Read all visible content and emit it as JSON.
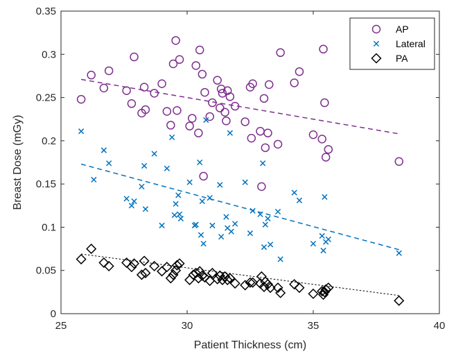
{
  "chart_data": {
    "type": "scatter",
    "title": "",
    "xlabel": "Patient Thickness (cm)",
    "ylabel": "Breast Dose (mGy)",
    "xlim": [
      25,
      40
    ],
    "ylim": [
      0,
      0.35
    ],
    "xticks": [
      25,
      30,
      35,
      40
    ],
    "yticks": [
      0,
      0.05,
      0.1,
      0.15,
      0.2,
      0.25,
      0.3,
      0.35
    ],
    "grid": false,
    "legend_position": "top-right",
    "series": [
      {
        "name": "AP",
        "marker": "circle",
        "color": "#7E2F8E",
        "points": [
          [
            25.8,
            0.248
          ],
          [
            26.2,
            0.276
          ],
          [
            26.7,
            0.261
          ],
          [
            26.9,
            0.281
          ],
          [
            27.6,
            0.258
          ],
          [
            27.8,
            0.243
          ],
          [
            27.9,
            0.297
          ],
          [
            28.2,
            0.232
          ],
          [
            28.3,
            0.262
          ],
          [
            28.35,
            0.236
          ],
          [
            28.7,
            0.255
          ],
          [
            29.0,
            0.266
          ],
          [
            29.2,
            0.234
          ],
          [
            29.35,
            0.218
          ],
          [
            29.45,
            0.289
          ],
          [
            29.55,
            0.316
          ],
          [
            29.6,
            0.235
          ],
          [
            29.7,
            0.294
          ],
          [
            30.1,
            0.217
          ],
          [
            30.2,
            0.226
          ],
          [
            30.35,
            0.287
          ],
          [
            30.45,
            0.209
          ],
          [
            30.5,
            0.305
          ],
          [
            30.6,
            0.277
          ],
          [
            30.65,
            0.159
          ],
          [
            30.7,
            0.256
          ],
          [
            30.9,
            0.228
          ],
          [
            31.0,
            0.244
          ],
          [
            31.2,
            0.27
          ],
          [
            31.3,
            0.238
          ],
          [
            31.35,
            0.26
          ],
          [
            31.4,
            0.255
          ],
          [
            31.5,
            0.233
          ],
          [
            31.55,
            0.223
          ],
          [
            31.6,
            0.258
          ],
          [
            31.7,
            0.251
          ],
          [
            31.9,
            0.24
          ],
          [
            32.3,
            0.222
          ],
          [
            32.5,
            0.262
          ],
          [
            32.55,
            0.203
          ],
          [
            32.6,
            0.266
          ],
          [
            32.9,
            0.211
          ],
          [
            32.95,
            0.147
          ],
          [
            33.05,
            0.249
          ],
          [
            33.1,
            0.192
          ],
          [
            33.2,
            0.209
          ],
          [
            33.25,
            0.265
          ],
          [
            33.6,
            0.196
          ],
          [
            33.7,
            0.302
          ],
          [
            34.25,
            0.267
          ],
          [
            34.45,
            0.28
          ],
          [
            35.0,
            0.207
          ],
          [
            35.35,
            0.202
          ],
          [
            35.4,
            0.306
          ],
          [
            35.45,
            0.244
          ],
          [
            35.5,
            0.181
          ],
          [
            35.6,
            0.19
          ],
          [
            38.4,
            0.176
          ]
        ],
        "trend": [
          [
            25.8,
            0.271
          ],
          [
            38.4,
            0.208
          ]
        ]
      },
      {
        "name": "Lateral",
        "marker": "x",
        "color": "#0072BD",
        "points": [
          [
            25.8,
            0.211
          ],
          [
            26.3,
            0.155
          ],
          [
            26.7,
            0.189
          ],
          [
            26.9,
            0.174
          ],
          [
            27.6,
            0.133
          ],
          [
            27.8,
            0.125
          ],
          [
            27.9,
            0.13
          ],
          [
            28.2,
            0.147
          ],
          [
            28.3,
            0.171
          ],
          [
            28.35,
            0.121
          ],
          [
            28.7,
            0.185
          ],
          [
            29.0,
            0.102
          ],
          [
            29.2,
            0.168
          ],
          [
            29.4,
            0.204
          ],
          [
            29.5,
            0.114
          ],
          [
            29.55,
            0.127
          ],
          [
            29.65,
            0.137
          ],
          [
            29.7,
            0.115
          ],
          [
            29.75,
            0.11
          ],
          [
            30.1,
            0.152
          ],
          [
            30.3,
            0.102
          ],
          [
            30.35,
            0.103
          ],
          [
            30.5,
            0.175
          ],
          [
            30.55,
            0.091
          ],
          [
            30.6,
            0.13
          ],
          [
            30.65,
            0.081
          ],
          [
            30.75,
            0.224
          ],
          [
            30.9,
            0.134
          ],
          [
            31.0,
            0.102
          ],
          [
            31.3,
            0.149
          ],
          [
            31.35,
            0.089
          ],
          [
            31.55,
            0.112
          ],
          [
            31.6,
            0.099
          ],
          [
            31.7,
            0.209
          ],
          [
            31.75,
            0.095
          ],
          [
            31.9,
            0.104
          ],
          [
            32.3,
            0.152
          ],
          [
            32.5,
            0.093
          ],
          [
            32.6,
            0.119
          ],
          [
            32.9,
            0.115
          ],
          [
            33.0,
            0.174
          ],
          [
            33.05,
            0.077
          ],
          [
            33.1,
            0.103
          ],
          [
            33.2,
            0.11
          ],
          [
            33.3,
            0.08
          ],
          [
            33.6,
            0.118
          ],
          [
            33.7,
            0.063
          ],
          [
            34.25,
            0.14
          ],
          [
            34.45,
            0.131
          ],
          [
            35.0,
            0.081
          ],
          [
            35.35,
            0.09
          ],
          [
            35.4,
            0.073
          ],
          [
            35.45,
            0.135
          ],
          [
            35.5,
            0.083
          ],
          [
            35.6,
            0.086
          ],
          [
            38.4,
            0.07
          ]
        ],
        "trend": [
          [
            25.8,
            0.173
          ],
          [
            38.4,
            0.074
          ]
        ]
      },
      {
        "name": "PA",
        "marker": "diamond",
        "color": "#000000",
        "points": [
          [
            25.8,
            0.063
          ],
          [
            26.2,
            0.075
          ],
          [
            26.7,
            0.059
          ],
          [
            26.9,
            0.055
          ],
          [
            27.6,
            0.059
          ],
          [
            27.8,
            0.054
          ],
          [
            27.9,
            0.058
          ],
          [
            28.2,
            0.045
          ],
          [
            28.3,
            0.061
          ],
          [
            28.35,
            0.047
          ],
          [
            28.7,
            0.055
          ],
          [
            29.0,
            0.049
          ],
          [
            29.2,
            0.054
          ],
          [
            29.35,
            0.041
          ],
          [
            29.45,
            0.045
          ],
          [
            29.55,
            0.05
          ],
          [
            29.6,
            0.056
          ],
          [
            29.7,
            0.058
          ],
          [
            30.1,
            0.039
          ],
          [
            30.25,
            0.045
          ],
          [
            30.35,
            0.047
          ],
          [
            30.45,
            0.041
          ],
          [
            30.5,
            0.049
          ],
          [
            30.6,
            0.044
          ],
          [
            30.7,
            0.042
          ],
          [
            30.9,
            0.038
          ],
          [
            31.0,
            0.047
          ],
          [
            31.2,
            0.04
          ],
          [
            31.3,
            0.044
          ],
          [
            31.4,
            0.039
          ],
          [
            31.5,
            0.043
          ],
          [
            31.6,
            0.039
          ],
          [
            31.7,
            0.041
          ],
          [
            31.9,
            0.035
          ],
          [
            32.3,
            0.033
          ],
          [
            32.5,
            0.036
          ],
          [
            32.6,
            0.036
          ],
          [
            32.9,
            0.035
          ],
          [
            32.95,
            0.043
          ],
          [
            33.05,
            0.031
          ],
          [
            33.1,
            0.037
          ],
          [
            33.2,
            0.034
          ],
          [
            33.3,
            0.03
          ],
          [
            33.6,
            0.03
          ],
          [
            33.7,
            0.024
          ],
          [
            34.25,
            0.034
          ],
          [
            34.45,
            0.03
          ],
          [
            35.0,
            0.023
          ],
          [
            35.35,
            0.026
          ],
          [
            35.4,
            0.022
          ],
          [
            35.45,
            0.025
          ],
          [
            35.5,
            0.028
          ],
          [
            35.6,
            0.03
          ],
          [
            38.4,
            0.015
          ]
        ],
        "trend": [
          [
            25.8,
            0.069
          ],
          [
            38.4,
            0.021
          ]
        ]
      }
    ]
  }
}
